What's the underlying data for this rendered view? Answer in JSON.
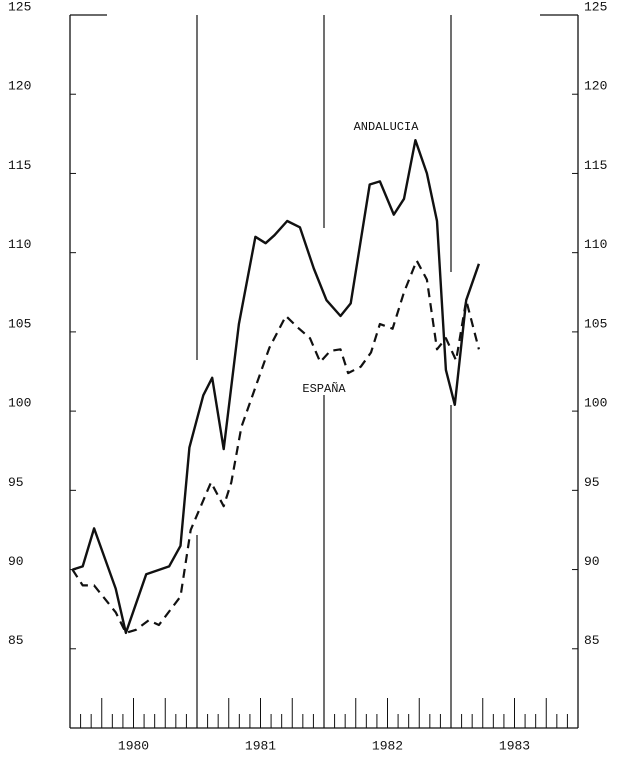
{
  "chart_data": {
    "type": "line",
    "x_is": "decimal-year",
    "xlim": [
      1980,
      1984
    ],
    "xticks": [
      {
        "value": 1980.5,
        "label": "1980"
      },
      {
        "value": 1981.5,
        "label": "1981"
      },
      {
        "value": 1982.5,
        "label": "1982"
      },
      {
        "value": 1983.5,
        "label": "1983"
      }
    ],
    "ylim": [
      80,
      125
    ],
    "yticks": [
      85,
      90,
      95,
      100,
      105,
      110,
      115,
      120,
      125
    ],
    "series": [
      {
        "name": "ANDALUCIA",
        "color": "#111111",
        "dash": "solid",
        "x": [
          1980.02,
          1980.1,
          1980.19,
          1980.36,
          1980.44,
          1980.6,
          1980.78,
          1980.87,
          1980.94,
          1981.05,
          1981.12,
          1981.21,
          1981.33,
          1981.46,
          1981.54,
          1981.61,
          1981.71,
          1981.81,
          1981.92,
          1982.02,
          1982.13,
          1982.21,
          1982.36,
          1982.44,
          1982.55,
          1982.63,
          1982.72,
          1982.81,
          1982.89,
          1982.96,
          1983.03,
          1983.12,
          1983.22
        ],
        "values": [
          90.0,
          90.2,
          92.6,
          88.8,
          86.0,
          89.7,
          90.2,
          91.5,
          97.7,
          101.0,
          102.1,
          97.6,
          105.5,
          111.0,
          110.6,
          111.1,
          112.0,
          111.6,
          109.0,
          107.0,
          106.0,
          106.8,
          114.3,
          114.5,
          112.4,
          113.4,
          117.1,
          115.0,
          112.0,
          102.6,
          100.4,
          107.0,
          109.3
        ]
      },
      {
        "name": "ESPAÑA",
        "color": "#111111",
        "dash": "dashed",
        "x": [
          1980.02,
          1980.1,
          1980.19,
          1980.36,
          1980.44,
          1980.52,
          1980.62,
          1980.7,
          1980.87,
          1980.95,
          1981.03,
          1981.11,
          1981.21,
          1981.27,
          1981.35,
          1981.46,
          1981.57,
          1981.7,
          1981.79,
          1981.89,
          1981.97,
          1982.05,
          1982.13,
          1982.19,
          1982.29,
          1982.37,
          1982.44,
          1982.54,
          1982.63,
          1982.73,
          1982.81,
          1982.89,
          1982.96,
          1983.04,
          1983.12,
          1983.22
        ],
        "values": [
          90.0,
          89.0,
          89.0,
          87.3,
          86.0,
          86.2,
          86.8,
          86.5,
          88.3,
          92.5,
          94.0,
          95.5,
          94.0,
          95.5,
          99.0,
          101.5,
          104.0,
          106.0,
          105.3,
          104.6,
          103.1,
          103.8,
          103.9,
          102.4,
          102.8,
          103.7,
          105.5,
          105.2,
          107.5,
          109.5,
          108.3,
          103.9,
          104.6,
          103.2,
          107.0,
          103.9
        ]
      }
    ]
  }
}
